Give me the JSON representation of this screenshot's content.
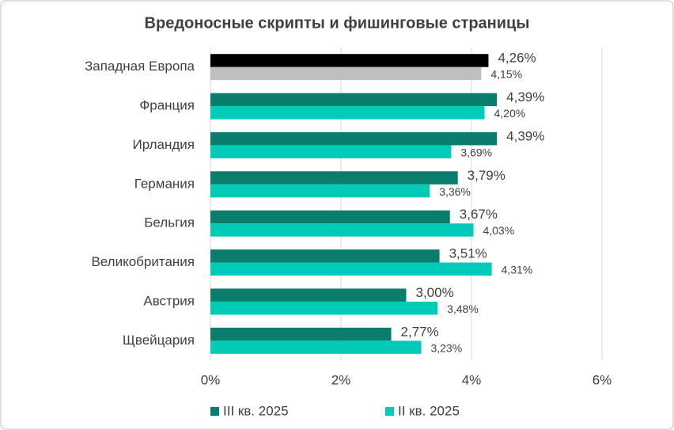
{
  "chart_data": {
    "type": "hbar",
    "title": "Вредоносные скрипты и фишинговые страницы",
    "categories": [
      "Западная Европа",
      "Франция",
      "Ирландия",
      "Германия",
      "Бельгия",
      "Великобритания",
      "Австрия",
      "Щвейцария"
    ],
    "series": [
      {
        "name": "III кв. 2025",
        "color": "#0a7d6c",
        "colors": [
          "#000000",
          "#0a7d6c",
          "#0a7d6c",
          "#0a7d6c",
          "#0a7d6c",
          "#0a7d6c",
          "#0a7d6c",
          "#0a7d6c"
        ],
        "values": [
          4.26,
          4.39,
          4.39,
          3.79,
          3.67,
          3.51,
          3.0,
          2.77
        ],
        "value_labels": [
          "4,26%",
          "4,39%",
          "4,39%",
          "3,79%",
          "3,67%",
          "3,51%",
          "3,00%",
          "2,77%"
        ]
      },
      {
        "name": "II кв. 2025",
        "color": "#00cbb8",
        "colors": [
          "#bfbfbf",
          "#00cbb8",
          "#00cbb8",
          "#00cbb8",
          "#00cbb8",
          "#00cbb8",
          "#00cbb8",
          "#00cbb8"
        ],
        "values": [
          4.15,
          4.2,
          3.69,
          3.36,
          4.03,
          4.31,
          3.48,
          3.23
        ],
        "value_labels": [
          "4,15%",
          "4,20%",
          "3,69%",
          "3,36%",
          "4,03%",
          "4,31%",
          "3,48%",
          "3,23%"
        ]
      }
    ],
    "xlim": [
      0,
      6
    ],
    "xticks": [
      {
        "value": 0,
        "label": "0%"
      },
      {
        "value": 2,
        "label": "2%"
      },
      {
        "value": 4,
        "label": "4%"
      },
      {
        "value": 6,
        "label": "6%"
      }
    ],
    "grid": true,
    "legend": "bottom"
  }
}
